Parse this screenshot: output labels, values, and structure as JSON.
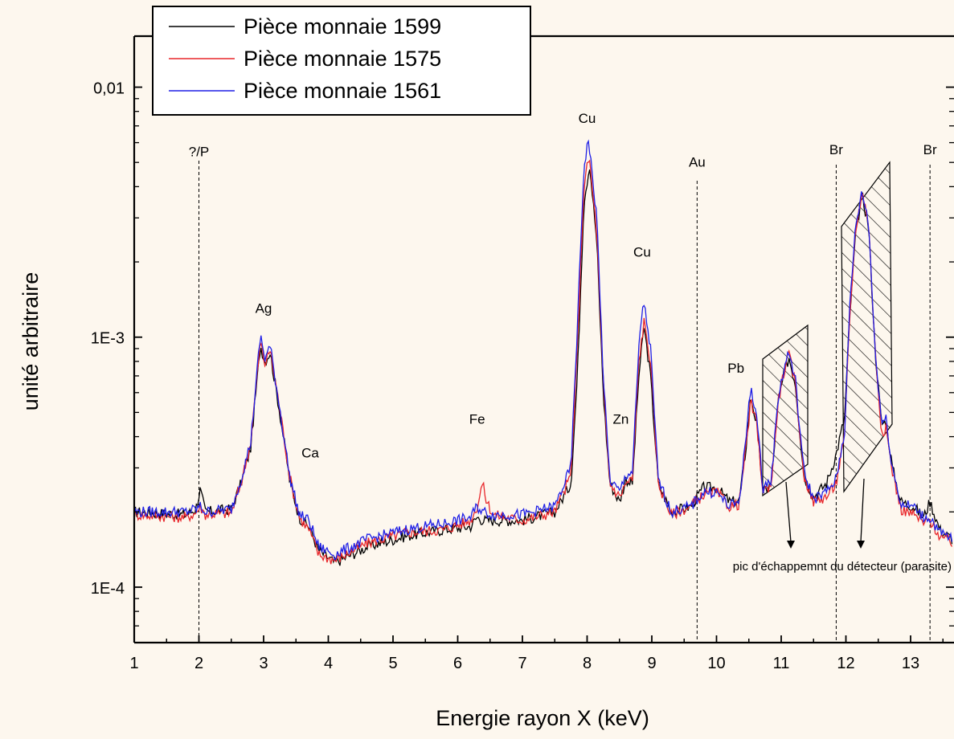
{
  "chart_data": {
    "type": "line",
    "title": "",
    "xlabel": "Energie rayon X (keV)",
    "ylabel": "unité arbitraire",
    "xlim": [
      1,
      13.65
    ],
    "ylim": [
      6e-05,
      0.016
    ],
    "yscale": "log",
    "grid": false,
    "legend_position": "top-left",
    "x_ticks": [
      "1",
      "2",
      "3",
      "4",
      "5",
      "6",
      "7",
      "8",
      "9",
      "10",
      "11",
      "12",
      "13"
    ],
    "y_ticks": [
      {
        "value": 0.0001,
        "label": "1E-4"
      },
      {
        "value": 0.001,
        "label": "1E-3"
      },
      {
        "value": 0.01,
        "label": "0,01"
      }
    ],
    "series": [
      {
        "name": "Pièce monnaie 1599",
        "color": "#000000",
        "points": [
          [
            1.0,
            0.0002
          ],
          [
            1.8,
            0.000195
          ],
          [
            1.95,
            0.000205
          ],
          [
            2.02,
            0.000245
          ],
          [
            2.1,
            0.0002
          ],
          [
            2.5,
            0.000205
          ],
          [
            2.65,
            0.00026
          ],
          [
            2.8,
            0.00036
          ],
          [
            2.95,
            0.00093
          ],
          [
            3.02,
            0.0008
          ],
          [
            3.1,
            0.00087
          ],
          [
            3.25,
            0.0005
          ],
          [
            3.4,
            0.00027
          ],
          [
            3.55,
            0.00019
          ],
          [
            3.7,
            0.000175
          ],
          [
            3.85,
            0.00014
          ],
          [
            4.1,
            0.000125
          ],
          [
            4.6,
            0.000145
          ],
          [
            5.2,
            0.00016
          ],
          [
            5.8,
            0.00017
          ],
          [
            6.2,
            0.000175
          ],
          [
            6.3,
            0.00019
          ],
          [
            6.4,
            0.000185
          ],
          [
            6.55,
            0.000185
          ],
          [
            7.0,
            0.000185
          ],
          [
            7.5,
            0.0002
          ],
          [
            7.75,
            0.00026
          ],
          [
            7.85,
            0.0007
          ],
          [
            7.95,
            0.0035
          ],
          [
            8.04,
            0.0049
          ],
          [
            8.15,
            0.0024
          ],
          [
            8.25,
            0.0006
          ],
          [
            8.35,
            0.00026
          ],
          [
            8.5,
            0.00022
          ],
          [
            8.6,
            0.00027
          ],
          [
            8.7,
            0.00026
          ],
          [
            8.8,
            0.0007
          ],
          [
            8.88,
            0.0011
          ],
          [
            8.98,
            0.0007
          ],
          [
            9.1,
            0.00026
          ],
          [
            9.3,
            0.0002
          ],
          [
            9.6,
            0.00021
          ],
          [
            9.8,
            0.00025
          ],
          [
            10.0,
            0.00025
          ],
          [
            10.2,
            0.00022
          ],
          [
            10.35,
            0.00022
          ],
          [
            10.45,
            0.00035
          ],
          [
            10.53,
            0.00058
          ],
          [
            10.62,
            0.00045
          ],
          [
            10.72,
            0.00024
          ],
          [
            10.85,
            0.00026
          ],
          [
            10.95,
            0.00055
          ],
          [
            11.05,
            0.00072
          ],
          [
            11.12,
            0.00083
          ],
          [
            11.22,
            0.00065
          ],
          [
            11.35,
            0.00028
          ],
          [
            11.5,
            0.00023
          ],
          [
            11.7,
            0.00026
          ],
          [
            11.85,
            0.00034
          ],
          [
            11.98,
            0.00048
          ],
          [
            12.05,
            0.0011
          ],
          [
            12.15,
            0.0026
          ],
          [
            12.25,
            0.0037
          ],
          [
            12.35,
            0.0028
          ],
          [
            12.45,
            0.0009
          ],
          [
            12.55,
            0.00045
          ],
          [
            12.62,
            0.00046
          ],
          [
            12.72,
            0.0003
          ],
          [
            12.85,
            0.00022
          ],
          [
            13.05,
            0.00021
          ],
          [
            13.2,
            0.00019
          ],
          [
            13.3,
            0.00022
          ],
          [
            13.45,
            0.00017
          ],
          [
            13.65,
            0.000155
          ]
        ]
      },
      {
        "name": "Pièce monnaie 1575",
        "color": "#e8262a",
        "points": [
          [
            1.0,
            0.000195
          ],
          [
            1.8,
            0.00019
          ],
          [
            1.95,
            0.000198
          ],
          [
            2.02,
            0.00021
          ],
          [
            2.1,
            0.000195
          ],
          [
            2.5,
            0.000198
          ],
          [
            2.65,
            0.00026
          ],
          [
            2.8,
            0.00038
          ],
          [
            2.95,
            0.00096
          ],
          [
            3.02,
            0.00078
          ],
          [
            3.1,
            0.00089
          ],
          [
            3.25,
            0.00052
          ],
          [
            3.4,
            0.00028
          ],
          [
            3.55,
            0.00019
          ],
          [
            3.7,
            0.00017
          ],
          [
            3.85,
            0.000135
          ],
          [
            4.1,
            0.000128
          ],
          [
            4.6,
            0.00015
          ],
          [
            5.2,
            0.000165
          ],
          [
            5.8,
            0.00017
          ],
          [
            6.2,
            0.000185
          ],
          [
            6.3,
            0.00021
          ],
          [
            6.38,
            0.00026
          ],
          [
            6.45,
            0.00022
          ],
          [
            6.55,
            0.000195
          ],
          [
            7.0,
            0.000185
          ],
          [
            7.5,
            0.0002
          ],
          [
            7.75,
            0.00028
          ],
          [
            7.85,
            0.0009
          ],
          [
            7.95,
            0.004
          ],
          [
            8.03,
            0.0053
          ],
          [
            8.15,
            0.0026
          ],
          [
            8.25,
            0.00065
          ],
          [
            8.35,
            0.00026
          ],
          [
            8.5,
            0.00023
          ],
          [
            8.6,
            0.00026
          ],
          [
            8.7,
            0.00027
          ],
          [
            8.8,
            0.0008
          ],
          [
            8.88,
            0.00115
          ],
          [
            8.98,
            0.0008
          ],
          [
            9.1,
            0.00026
          ],
          [
            9.3,
            0.000195
          ],
          [
            9.6,
            0.00021
          ],
          [
            9.8,
            0.000235
          ],
          [
            10.0,
            0.00024
          ],
          [
            10.2,
            0.00021
          ],
          [
            10.35,
            0.000215
          ],
          [
            10.45,
            0.00035
          ],
          [
            10.53,
            0.00055
          ],
          [
            10.62,
            0.00045
          ],
          [
            10.72,
            0.00024
          ],
          [
            10.85,
            0.00026
          ],
          [
            10.95,
            0.00055
          ],
          [
            11.05,
            0.00074
          ],
          [
            11.12,
            0.00085
          ],
          [
            11.22,
            0.00065
          ],
          [
            11.35,
            0.00028
          ],
          [
            11.5,
            0.00022
          ],
          [
            11.7,
            0.00023
          ],
          [
            11.85,
            0.00026
          ],
          [
            11.98,
            0.0004
          ],
          [
            12.05,
            0.0011
          ],
          [
            12.15,
            0.0027
          ],
          [
            12.25,
            0.0038
          ],
          [
            12.35,
            0.0029
          ],
          [
            12.45,
            0.0009
          ],
          [
            12.55,
            0.00042
          ],
          [
            12.62,
            0.00043
          ],
          [
            12.72,
            0.00029
          ],
          [
            12.85,
            0.000205
          ],
          [
            13.05,
            0.000195
          ],
          [
            13.2,
            0.00018
          ],
          [
            13.3,
            0.000185
          ],
          [
            13.45,
            0.00016
          ],
          [
            13.65,
            0.00015
          ]
        ]
      },
      {
        "name": "Pièce monnaie 1561",
        "color": "#1f1fe6",
        "points": [
          [
            1.0,
            0.0002
          ],
          [
            1.8,
            0.0002
          ],
          [
            1.95,
            0.000205
          ],
          [
            2.02,
            0.00021
          ],
          [
            2.1,
            0.0002
          ],
          [
            2.5,
            0.000205
          ],
          [
            2.65,
            0.00027
          ],
          [
            2.8,
            0.00038
          ],
          [
            2.95,
            0.00102
          ],
          [
            3.02,
            0.00082
          ],
          [
            3.1,
            0.00092
          ],
          [
            3.25,
            0.00052
          ],
          [
            3.4,
            0.00028
          ],
          [
            3.55,
            0.000195
          ],
          [
            3.7,
            0.000185
          ],
          [
            3.85,
            0.000145
          ],
          [
            4.1,
            0.000135
          ],
          [
            4.6,
            0.000155
          ],
          [
            5.2,
            0.00017
          ],
          [
            5.8,
            0.00018
          ],
          [
            6.2,
            0.00019
          ],
          [
            6.3,
            0.00021
          ],
          [
            6.4,
            0.0002
          ],
          [
            6.55,
            0.000195
          ],
          [
            7.0,
            0.000195
          ],
          [
            7.5,
            0.00021
          ],
          [
            7.75,
            0.0003
          ],
          [
            7.85,
            0.0011
          ],
          [
            7.95,
            0.0048
          ],
          [
            8.02,
            0.0062
          ],
          [
            8.15,
            0.003
          ],
          [
            8.25,
            0.0007
          ],
          [
            8.35,
            0.00027
          ],
          [
            8.5,
            0.00024
          ],
          [
            8.6,
            0.00028
          ],
          [
            8.7,
            0.00029
          ],
          [
            8.8,
            0.0009
          ],
          [
            8.87,
            0.00142
          ],
          [
            8.98,
            0.0009
          ],
          [
            9.1,
            0.00027
          ],
          [
            9.3,
            0.0002
          ],
          [
            9.6,
            0.00021
          ],
          [
            9.8,
            0.00024
          ],
          [
            10.0,
            0.00024
          ],
          [
            10.2,
            0.00021
          ],
          [
            10.35,
            0.00022
          ],
          [
            10.45,
            0.00038
          ],
          [
            10.53,
            0.00064
          ],
          [
            10.62,
            0.00048
          ],
          [
            10.72,
            0.00025
          ],
          [
            10.85,
            0.00027
          ],
          [
            10.95,
            0.00057
          ],
          [
            11.05,
            0.00076
          ],
          [
            11.12,
            0.00087
          ],
          [
            11.22,
            0.00067
          ],
          [
            11.35,
            0.00029
          ],
          [
            11.5,
            0.000225
          ],
          [
            11.7,
            0.00024
          ],
          [
            11.85,
            0.00027
          ],
          [
            11.98,
            0.00042
          ],
          [
            12.05,
            0.0012
          ],
          [
            12.15,
            0.0028
          ],
          [
            12.25,
            0.0038
          ],
          [
            12.35,
            0.0029
          ],
          [
            12.45,
            0.0009
          ],
          [
            12.55,
            0.00046
          ],
          [
            12.62,
            0.00047
          ],
          [
            12.72,
            0.0003
          ],
          [
            12.85,
            0.000215
          ],
          [
            13.05,
            0.00021
          ],
          [
            13.2,
            0.00019
          ],
          [
            13.3,
            0.00019
          ],
          [
            13.45,
            0.000165
          ],
          [
            13.65,
            0.000155
          ]
        ]
      }
    ],
    "peak_labels": [
      {
        "label": "?/P",
        "x": 2.0,
        "y": 0.0053
      },
      {
        "label": "Ag",
        "x": 3.0,
        "y": 0.00125
      },
      {
        "label": "Ca",
        "x": 3.72,
        "y": 0.00033
      },
      {
        "label": "Fe",
        "x": 6.3,
        "y": 0.00045
      },
      {
        "label": "Zn",
        "x": 8.52,
        "y": 0.00045
      },
      {
        "label": "Cu",
        "x": 8.0,
        "y": 0.0072
      },
      {
        "label": "Cu",
        "x": 8.85,
        "y": 0.0021
      },
      {
        "label": "Au",
        "x": 9.7,
        "y": 0.0048
      },
      {
        "label": "Pb",
        "x": 10.3,
        "y": 0.00072
      },
      {
        "label": "Br",
        "x": 11.85,
        "y": 0.0054
      },
      {
        "label": "Br",
        "x": 13.3,
        "y": 0.0054
      }
    ],
    "reference_lines": [
      2.0,
      9.7,
      11.85,
      13.3
    ],
    "annotation": "pic d'échappemnt du détecteur (parasite)"
  }
}
